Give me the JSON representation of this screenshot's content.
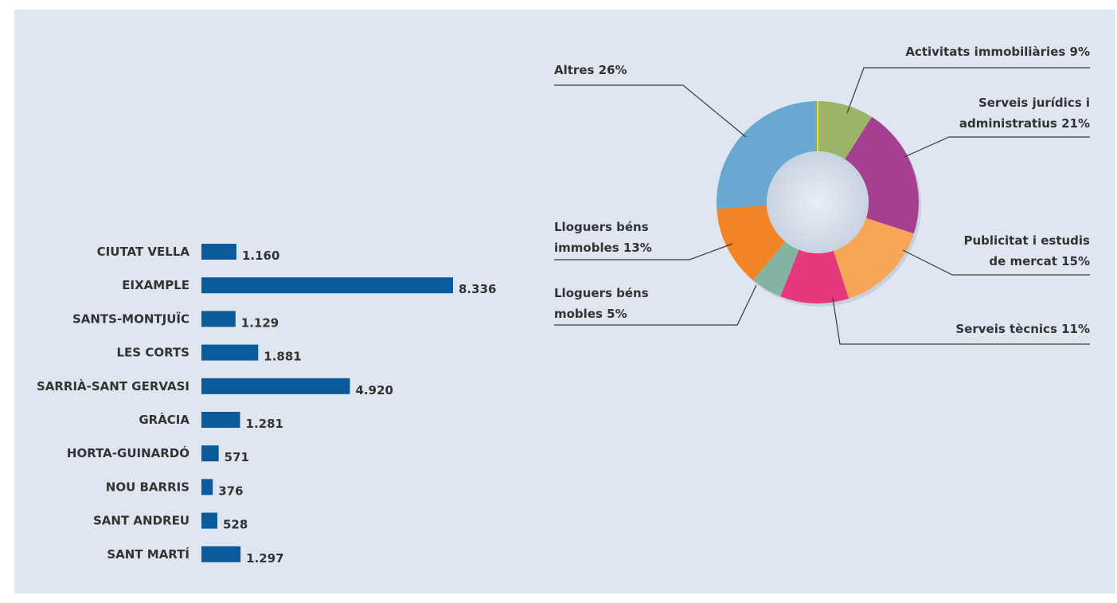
{
  "chart_data": [
    {
      "type": "bar",
      "orientation": "horizontal",
      "categories": [
        "CIUTAT VELLA",
        "EIXAMPLE",
        "SANTS-MONTJUÏC",
        "LES CORTS",
        "SARRIÀ-SANT GERVASI",
        "GRÀCIA",
        "HORTA-GUINARDÓ",
        "NOU BARRIS",
        "SANT ANDREU",
        "SANT MARTÍ"
      ],
      "values": [
        1160,
        8336,
        1129,
        1881,
        4920,
        1281,
        571,
        376,
        528,
        1297
      ],
      "value_labels": [
        "1.160",
        "8.336",
        "1.129",
        "1.881",
        "4.920",
        "1.281",
        "571",
        "376",
        "528",
        "1.297"
      ],
      "bar_color": "#0a5a9c",
      "xlim": [
        0,
        8336
      ],
      "grid": false
    },
    {
      "type": "pie",
      "donut": true,
      "slices": [
        {
          "label": "Activitats immobiliàries 9%",
          "value": 9,
          "color": "#9bb46a"
        },
        {
          "label": "Serveis jurídics i administratius 21%",
          "value": 21,
          "color": "#a63f8f"
        },
        {
          "label": "Publicitat i estudis de mercat 15%",
          "value": 15,
          "color": "#f7a657"
        },
        {
          "label": "Serveis tècnics 11%",
          "value": 11,
          "color": "#e6397b"
        },
        {
          "label": "Lloguers béns mobles 5%",
          "value": 5,
          "color": "#82b4a1"
        },
        {
          "label": "Lloguers béns immobles 13%",
          "value": 13,
          "color": "#f28426"
        },
        {
          "label": "Altres 26%",
          "value": 26,
          "color": "#6aa8d1"
        }
      ],
      "label_lines": [
        [
          "Activitats immobiliàries 9%"
        ],
        [
          "Serveis jurídics i",
          "administratius 21%"
        ],
        [
          "Publicitat i estudis",
          "de mercat 15%"
        ],
        [
          "Serveis tècnics 11%"
        ],
        [
          "Lloguers béns",
          "mobles 5%"
        ],
        [
          "Lloguers béns",
          "immobles 13%"
        ],
        [
          "Altres 26%"
        ]
      ],
      "separator_color": "#f2e400"
    }
  ]
}
